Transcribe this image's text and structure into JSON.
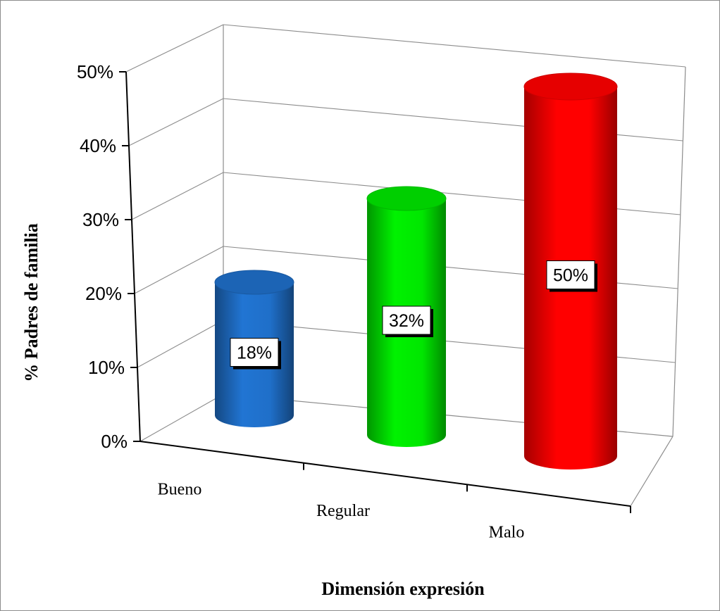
{
  "chart_data": {
    "type": "bar",
    "style": "3d-cylinder",
    "categories": [
      "Bueno",
      "Regular",
      "Malo"
    ],
    "values": [
      18,
      32,
      50
    ],
    "data_labels": [
      "18%",
      "32%",
      "50%"
    ],
    "colors": [
      "#1f6fc9",
      "#00e600",
      "#ff0000"
    ],
    "xlabel": "Dimensión expresión",
    "ylabel": "% Padres de familia",
    "ylim": [
      0,
      50
    ],
    "y_ticks": [
      "0%",
      "10%",
      "20%",
      "30%",
      "40%",
      "50%"
    ],
    "grid": true,
    "legend": "none"
  }
}
